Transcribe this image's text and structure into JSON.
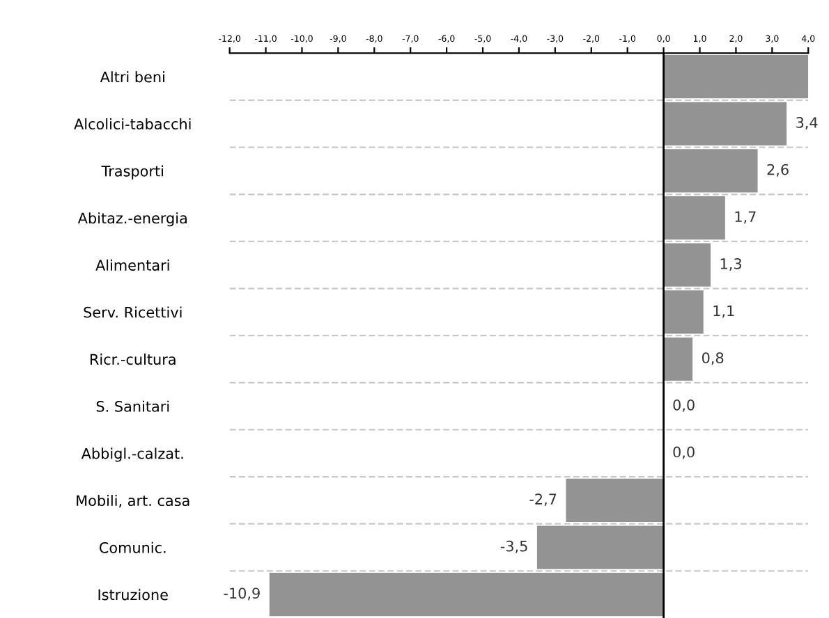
{
  "chart_data": {
    "type": "bar",
    "orientation": "horizontal",
    "categories": [
      "Altri beni",
      "Alcolici-tabacchi",
      "Trasporti",
      "Abitaz.-energia",
      "Alimentari",
      "Serv. Ricettivi",
      "Ricr.-cultura",
      "S. Sanitari",
      "Abbigl.-calzat.",
      "Mobili, art. casa",
      "Comunic.",
      "Istruzione"
    ],
    "values": [
      4.0,
      3.4,
      2.6,
      1.7,
      1.3,
      1.1,
      0.8,
      0.0,
      0.0,
      -2.7,
      -3.5,
      -10.9
    ],
    "value_labels": [
      null,
      "3,4",
      "2,6",
      "1,7",
      "1,3",
      "1,1",
      "0,8",
      "0,0",
      "0,0",
      "-2,7",
      "-3,5",
      "-10,9"
    ],
    "color": "#939393",
    "xlim": [
      -12,
      4
    ],
    "xticks": [
      {
        "value": -12,
        "label": "-12,0"
      },
      {
        "value": -11,
        "label": "-11,0"
      },
      {
        "value": -10,
        "label": "-10,0"
      },
      {
        "value": -9,
        "label": "-9,0"
      },
      {
        "value": -8,
        "label": "-8,0"
      },
      {
        "value": -7,
        "label": "-7,0"
      },
      {
        "value": -6,
        "label": "-6,0"
      },
      {
        "value": -5,
        "label": "-5,0"
      },
      {
        "value": -4,
        "label": "-4,0"
      },
      {
        "value": -3,
        "label": "-3,0"
      },
      {
        "value": -2,
        "label": "-2,0"
      },
      {
        "value": -1,
        "label": "-1,0"
      },
      {
        "value": 0,
        "label": "0,0"
      },
      {
        "value": 1,
        "label": "1,0"
      },
      {
        "value": 2,
        "label": "2,0"
      },
      {
        "value": 3,
        "label": "3,0"
      },
      {
        "value": 4,
        "label": "4,0"
      }
    ],
    "grid": "y"
  }
}
